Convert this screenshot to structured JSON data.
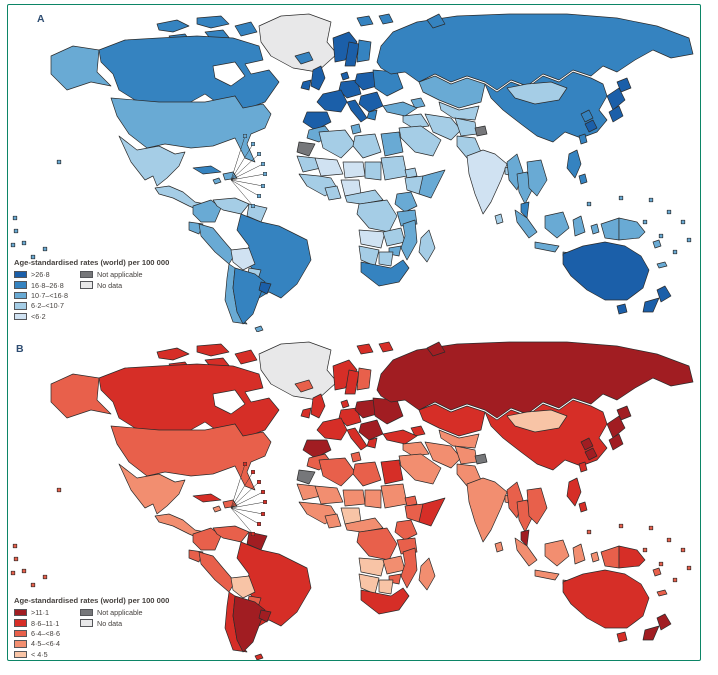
{
  "figure": {
    "border_color": "#0c8566",
    "background_color": "#ffffff"
  },
  "chart_data": {
    "type": "choropleth",
    "description_units": "Age-standardised rates (world) per 100 000",
    "panels": [
      {
        "label": "A",
        "legend_title": "Age-standardised rates (world) per 100 000",
        "classes": [
          {
            "label": ">26·8",
            "color": "#1b5fa9"
          },
          {
            "label": "16·8–26·8",
            "color": "#3583c0"
          },
          {
            "label": "10·7–<16·8",
            "color": "#69aad4"
          },
          {
            "label": "6·2–<10·7",
            "color": "#a5cde6"
          },
          {
            "label": "<6·2",
            "color": "#d0e2f2"
          }
        ],
        "special_classes": [
          {
            "label": "Not applicable",
            "color": "#76777a"
          },
          {
            "label": "No data",
            "color": "#e8e8e9"
          }
        ],
        "regions": {
          "greenland": "nd",
          "arctic1": 2,
          "arctic2": 2,
          "arctic3": 2,
          "arctic4": 2,
          "arctic5": 2,
          "canada": 2,
          "hudsonbay": "w",
          "alaska": 3,
          "usa": 3,
          "mexico": 4,
          "camerica": 4,
          "cuba": 2,
          "hispaniola": 3,
          "jamaica": 3,
          "carib": 3,
          "colombia": 3,
          "venezuela": 4,
          "guyanas": 4,
          "ecuador": 3,
          "peru": 3,
          "brazil": 2,
          "bolivia": 5,
          "paraguay": 4,
          "chile": 3,
          "argentina": 2,
          "uruguay": 1,
          "falkland": 3,
          "iceland": 2,
          "uk": 1,
          "ireland": 1,
          "norway": 1,
          "sweden": 1,
          "finland": 2,
          "denmark": 1,
          "germany": 1,
          "france": 1,
          "iberia": 1,
          "italy": 1,
          "poland": 1,
          "easteur": 2,
          "balkans": 1,
          "greece": 2,
          "svalbard1": 2,
          "svalbard2": 2,
          "russia": 2,
          "russiaisl": 2,
          "kazakhstan": 3,
          "centralasia": 4,
          "caucasus": 3,
          "turkey": 3,
          "syriairaq": 4,
          "mideast": 4,
          "iran": 4,
          "afghanistan": 4,
          "kashmir": "na",
          "pakistan": 4,
          "india": 5,
          "srilanka": 4,
          "bangladesh": 4,
          "myanmar": 3,
          "thailand": 3,
          "indochina": 3,
          "malaysia": 2,
          "china": 2,
          "mongolia": 4,
          "korean": 2,
          "koreas": 1,
          "japan": 1,
          "taiwan": 2,
          "philippines": 2,
          "morocco": 3,
          "wsahara": "na",
          "algeria": 4,
          "tunisia": 3,
          "libya": 4,
          "egypt": 3,
          "mauritania": 4,
          "mali": 5,
          "niger": 5,
          "chad": 4,
          "sudan": 4,
          "eritrea": 4,
          "wafrica": 4,
          "ghana": 4,
          "nigeria": 5,
          "ethiopia": 4,
          "somalia": 3,
          "cameroon": 4,
          "drc": 4,
          "ugandakenya": 3,
          "tanzania": 3,
          "angola": 5,
          "zambia": 4,
          "zimbabwe": 3,
          "mozambique": 3,
          "namibia": 4,
          "botswana": 4,
          "southafrica": 2,
          "madagascar": 4,
          "sumatra": 3,
          "borneo": 3,
          "java": 3,
          "sulawesi": 3,
          "moluccas": 3,
          "lessersunda": 3,
          "nguineaw": 3,
          "png": 3,
          "solomon": 3,
          "newcaledonia": 3,
          "australia": 1,
          "tasmania": 1,
          "nznorth": 1,
          "nzsouth": 1,
          "pacific": 3,
          "leftpacific": 3,
          "hawaii": 3
        }
      },
      {
        "label": "B",
        "legend_title": "Age-standardised rates (world) per 100 000",
        "classes": [
          {
            "label": ">11·1",
            "color": "#a11d22"
          },
          {
            "label": "8·6–11·1",
            "color": "#d62e27"
          },
          {
            "label": "6·4–<8·6",
            "color": "#e8604b"
          },
          {
            "label": "4·5–<6·4",
            "color": "#f28e70"
          },
          {
            "label": "< 4·5",
            "color": "#f8c4a6"
          }
        ],
        "special_classes": [
          {
            "label": "Not applicable",
            "color": "#76777a"
          },
          {
            "label": "No data",
            "color": "#e8e8e9"
          }
        ],
        "regions": {
          "greenland": "nd",
          "arctic1": 2,
          "arctic2": 2,
          "arctic3": 2,
          "arctic4": 2,
          "arctic5": 2,
          "canada": 2,
          "hudsonbay": "w",
          "alaska": 3,
          "usa": 3,
          "mexico": 4,
          "camerica": 4,
          "cuba": 2,
          "hispaniola": 3,
          "jamaica": 4,
          "carib": 2,
          "colombia": 3,
          "venezuela": 3,
          "guyanas": 1,
          "ecuador": 3,
          "peru": 3,
          "brazil": 2,
          "bolivia": 5,
          "paraguay": 3,
          "chile": 2,
          "argentina": 1,
          "uruguay": 1,
          "falkland": 2,
          "iceland": 3,
          "uk": 2,
          "ireland": 2,
          "norway": 2,
          "sweden": 2,
          "finland": 3,
          "denmark": 2,
          "germany": 2,
          "france": 2,
          "iberia": 1,
          "italy": 2,
          "poland": 1,
          "easteur": 1,
          "balkans": 1,
          "greece": 2,
          "svalbard1": 2,
          "svalbard2": 2,
          "russia": 1,
          "russiaisl": 1,
          "kazakhstan": 2,
          "centralasia": 4,
          "caucasus": 2,
          "turkey": 2,
          "syriairaq": 4,
          "mideast": 4,
          "iran": 4,
          "afghanistan": 4,
          "kashmir": "na",
          "pakistan": 4,
          "india": 4,
          "srilanka": 4,
          "bangladesh": 4,
          "myanmar": 3,
          "thailand": 3,
          "indochina": 3,
          "malaysia": 1,
          "china": 2,
          "mongolia": 5,
          "korean": 1,
          "koreas": 1,
          "japan": 1,
          "taiwan": 2,
          "philippines": 2,
          "morocco": 3,
          "wsahara": "na",
          "algeria": 3,
          "tunisia": 3,
          "libya": 3,
          "egypt": 2,
          "mauritania": 4,
          "mali": 4,
          "niger": 4,
          "chad": 4,
          "sudan": 4,
          "eritrea": 3,
          "wafrica": 4,
          "ghana": 4,
          "nigeria": 5,
          "ethiopia": 3,
          "somalia": 2,
          "cameroon": 4,
          "drc": 3,
          "ugandakenya": 3,
          "tanzania": 3,
          "angola": 5,
          "zambia": 4,
          "zimbabwe": 3,
          "mozambique": 3,
          "namibia": 5,
          "botswana": 5,
          "southafrica": 2,
          "madagascar": 4,
          "sumatra": 4,
          "borneo": 4,
          "java": 4,
          "sulawesi": 4,
          "moluccas": 4,
          "lessersunda": 4,
          "nguineaw": 3,
          "png": 2,
          "solomon": 3,
          "newcaledonia": 3,
          "australia": 2,
          "tasmania": 2,
          "nznorth": 1,
          "nzsouth": 1,
          "pacific": 3,
          "leftpacific": 3,
          "hawaii": 3
        }
      }
    ]
  }
}
